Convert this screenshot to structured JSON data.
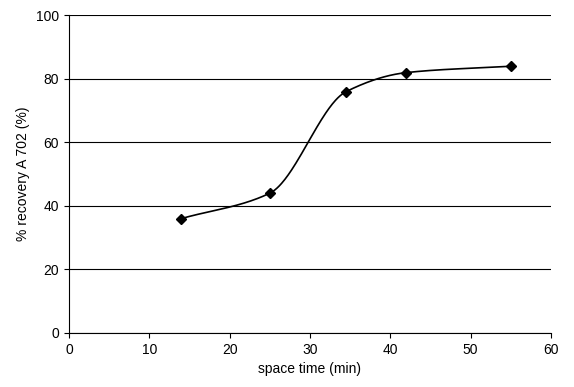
{
  "chart_data": {
    "type": "line",
    "x_label": "space time (min)",
    "y_label": "% recovery A 702 (%)",
    "x": [
      14,
      25,
      34.5,
      42,
      55
    ],
    "values": [
      36,
      44,
      76,
      82,
      84
    ],
    "color": "#000000",
    "marker": "diamond",
    "line_style": "smooth",
    "xlim": [
      0,
      60
    ],
    "xticks": [
      0,
      10,
      20,
      30,
      40,
      50,
      60
    ],
    "ylim": [
      0,
      100
    ],
    "yticks": [
      0,
      20,
      40,
      60,
      80,
      100
    ],
    "grid": true
  }
}
